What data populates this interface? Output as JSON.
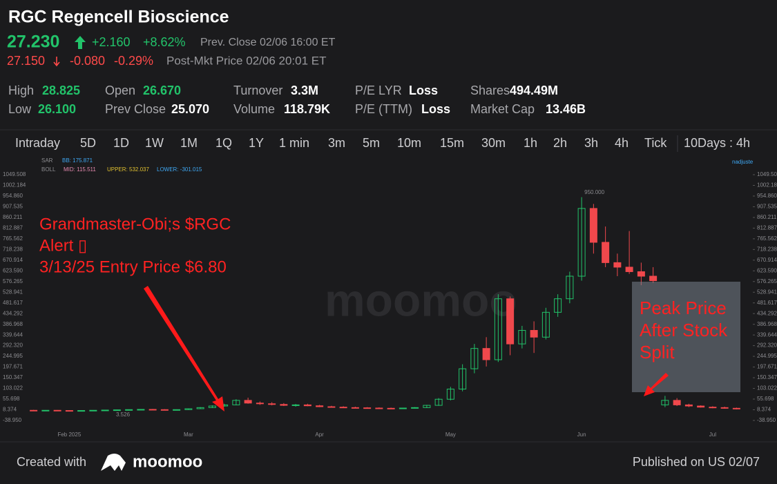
{
  "header": {
    "title": "RGC Regencell Bioscience",
    "price": "27.230",
    "price_change": "+2.160",
    "price_change_pct": "+8.62%",
    "prev_close_label": "Prev.  Close 02/06 16:00 ET",
    "post_price": "27.150",
    "post_change": "-0.080",
    "post_change_pct": "-0.29%",
    "post_label": "Post-Mkt Price 02/06 20:01 ET"
  },
  "stats": [
    {
      "label": "High",
      "value": "28.825"
    },
    {
      "label": "Low",
      "value": "26.100"
    },
    {
      "label": "Open",
      "value": "26.670"
    },
    {
      "label": "Prev Close",
      "value": "25.070"
    },
    {
      "label": "Turnover",
      "value": "3.3M"
    },
    {
      "label": "Volume",
      "value": "118.79K"
    },
    {
      "label": "P/E LYR",
      "value": "Loss"
    },
    {
      "label": "P/E (TTM)",
      "value": "Loss"
    },
    {
      "label": "Shares",
      "value": "494.49M"
    },
    {
      "label": "Market Cap",
      "value": "13.46B"
    }
  ],
  "tabs": [
    "Intraday",
    "5D",
    "1D",
    "1W",
    "1M",
    "1Q",
    "1Y",
    "1 min",
    "3m",
    "5m",
    "10m",
    "15m",
    "30m",
    "1h",
    "2h",
    "3h",
    "4h",
    "Tick",
    "10Days : 4h"
  ],
  "indicators": {
    "sar": "SAR",
    "bb": "BB: 175.871",
    "boll": "BOLL",
    "mid": "MID: 115.511",
    "upper": "UPPER: 532.037",
    "lower": "LOWER: -301.015",
    "adjust": "nadjuste"
  },
  "watermark": "moomoo",
  "annotations": {
    "alert_lines": [
      "Grandmaster-Obi;s $RGC",
      "Alert ▯",
      "3/13/25 Entry Price $6.80"
    ],
    "peak_lines": [
      "Peak Price",
      "After Stock",
      "Split"
    ]
  },
  "chart_data": {
    "type": "candlestick",
    "categories": [
      null,
      null,
      null,
      "Feb 2025",
      null,
      null,
      null,
      null,
      null,
      null,
      null,
      null,
      null,
      "Mar",
      null,
      null,
      null,
      null,
      null,
      null,
      null,
      null,
      null,
      null,
      "Apr",
      null,
      null,
      null,
      null,
      null,
      null,
      null,
      null,
      null,
      null,
      "May",
      null,
      null,
      null,
      null,
      null,
      null,
      null,
      null,
      null,
      null,
      "Jun",
      null,
      null,
      null,
      null,
      null,
      null,
      null,
      null,
      null,
      null,
      "Jul",
      null,
      null
    ],
    "open": [
      6,
      5,
      6,
      5,
      4,
      5,
      6,
      7,
      8,
      9,
      10,
      9,
      8,
      9,
      13,
      18,
      25,
      30,
      50,
      38,
      35,
      32,
      28,
      30,
      26,
      22,
      20,
      18,
      17,
      16,
      15,
      14,
      16,
      18,
      28,
      55,
      100,
      190,
      280,
      230,
      500,
      300,
      360,
      330,
      440,
      500,
      600,
      900,
      750,
      660,
      640,
      620,
      600,
      30,
      50,
      30,
      25,
      20,
      18,
      15
    ],
    "high": [
      8,
      7,
      7,
      6,
      6,
      7,
      8,
      9,
      10,
      11,
      12,
      11,
      10,
      14,
      20,
      28,
      35,
      55,
      62,
      45,
      42,
      38,
      34,
      35,
      30,
      26,
      24,
      22,
      20,
      19,
      18,
      17,
      20,
      30,
      60,
      110,
      210,
      300,
      330,
      520,
      510,
      380,
      400,
      460,
      520,
      620,
      950,
      920,
      820,
      700,
      800,
      660,
      640,
      70,
      60,
      35,
      28,
      24,
      22,
      18
    ],
    "low": [
      4,
      4,
      5,
      3.5,
      3.5,
      4,
      5,
      6,
      7,
      8,
      8,
      7,
      6.8,
      8,
      12,
      16,
      22,
      28,
      35,
      30,
      28,
      25,
      22,
      24,
      20,
      18,
      16,
      15,
      14,
      13,
      12,
      12,
      14,
      16,
      26,
      50,
      90,
      170,
      200,
      220,
      250,
      280,
      260,
      320,
      420,
      480,
      580,
      700,
      640,
      600,
      610,
      560,
      570,
      20,
      25,
      20,
      18,
      15,
      13,
      10
    ],
    "close": [
      5,
      6,
      5,
      4,
      5,
      6,
      7,
      8,
      9,
      10,
      9,
      8,
      9,
      13,
      18,
      25,
      30,
      50,
      38,
      35,
      32,
      28,
      30,
      26,
      22,
      20,
      18,
      17,
      16,
      15,
      14,
      16,
      18,
      28,
      55,
      100,
      190,
      280,
      230,
      500,
      300,
      360,
      330,
      440,
      500,
      600,
      900,
      750,
      660,
      640,
      620,
      600,
      580,
      50,
      30,
      25,
      20,
      18,
      15,
      12
    ],
    "up_color": "#22c36a",
    "down_color": "#f0484c",
    "ylim": [
      -88,
      1074
    ],
    "yticks": [
      1049.508,
      1002.184,
      {
        "value": 954.86,
        "label": "954.860"
      },
      907.535,
      860.211,
      812.887,
      765.562,
      718.238,
      670.914,
      {
        "value": 623.59,
        "label": "623.590"
      },
      576.265,
      528.941,
      481.617,
      434.292,
      386.968,
      339.644,
      {
        "value": 292.32,
        "label": "292.320"
      },
      244.995,
      197.671,
      150.347,
      103.022,
      55.698,
      8.374,
      {
        "value": -38.95,
        "label": "-38.950"
      }
    ],
    "high_label": "950.000",
    "low_label": "3.526"
  },
  "footer": {
    "created": "Created with",
    "brand": "moomoo",
    "published": "Published on US 02/07"
  }
}
